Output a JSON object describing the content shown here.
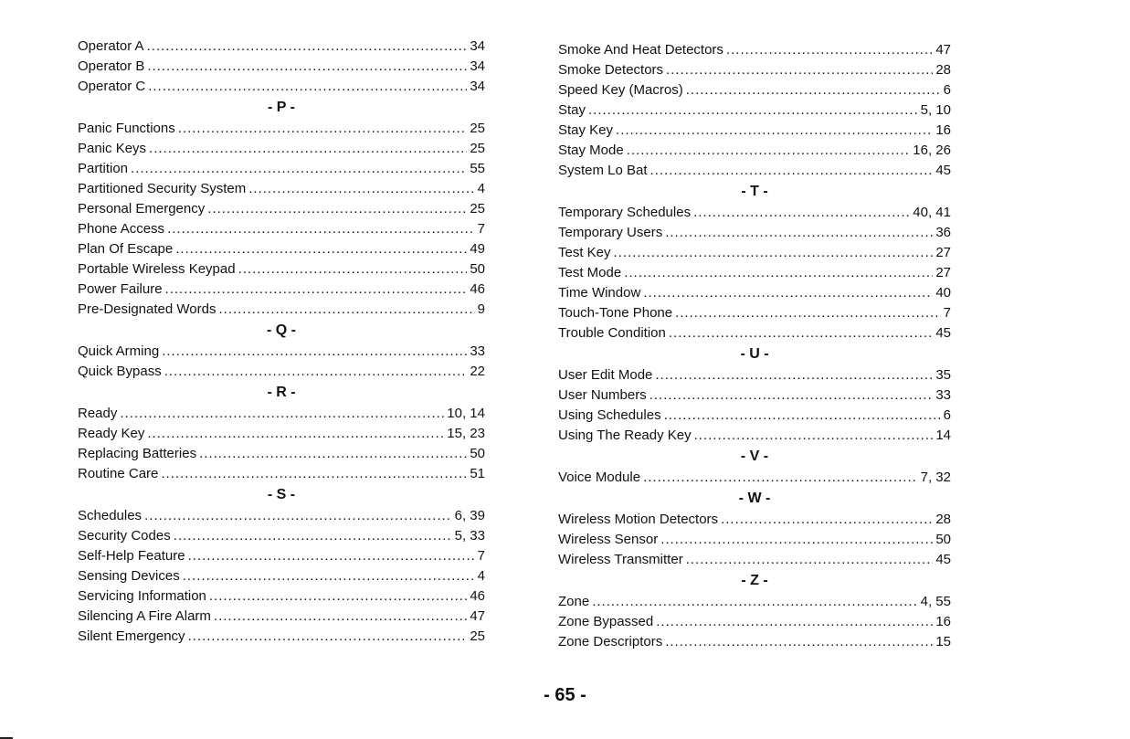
{
  "left_column": [
    {
      "term": "Operator A",
      "pages": "34"
    },
    {
      "term": "Operator B",
      "pages": "34"
    },
    {
      "term": "Operator C",
      "pages": "34"
    },
    {
      "heading": "- P -"
    },
    {
      "term": "Panic Functions",
      "pages": "25"
    },
    {
      "term": "Panic Keys",
      "pages": "25"
    },
    {
      "term": "Partition",
      "pages": "55"
    },
    {
      "term": "Partitioned Security System",
      "pages": "4"
    },
    {
      "term": "Personal Emergency",
      "pages": "25"
    },
    {
      "term": "Phone Access",
      "pages": "7"
    },
    {
      "term": "Plan Of Escape",
      "pages": "49"
    },
    {
      "term": "Portable Wireless Keypad",
      "pages": "50"
    },
    {
      "term": "Power Failure",
      "pages": "46"
    },
    {
      "term": "Pre-Designated Words",
      "pages": "9"
    },
    {
      "heading": "- Q -"
    },
    {
      "term": "Quick Arming",
      "pages": "33"
    },
    {
      "term": "Quick Bypass",
      "pages": "22"
    },
    {
      "heading": "- R -"
    },
    {
      "term": "Ready",
      "pages": "10, 14"
    },
    {
      "term": "Ready Key",
      "pages": "15, 23"
    },
    {
      "term": "Replacing Batteries",
      "pages": "50"
    },
    {
      "term": "Routine Care",
      "pages": "51"
    },
    {
      "heading": "- S -"
    },
    {
      "term": "Schedules",
      "pages": "6, 39"
    },
    {
      "term": "Security Codes",
      "pages": "5, 33"
    },
    {
      "term": "Self-Help Feature",
      "pages": "7"
    },
    {
      "term": "Sensing Devices",
      "pages": "4"
    },
    {
      "term": "Servicing Information",
      "pages": "46"
    },
    {
      "term": "Silencing A Fire Alarm",
      "pages": "47"
    },
    {
      "term": "Silent Emergency",
      "pages": "25"
    }
  ],
  "right_column": [
    {
      "term": "Smoke And Heat Detectors",
      "pages": "47"
    },
    {
      "term": "Smoke Detectors",
      "pages": "28"
    },
    {
      "term": "Speed Key (Macros)",
      "pages": "6"
    },
    {
      "term": "Stay",
      "pages": "5, 10"
    },
    {
      "term": "Stay Key",
      "pages": "16"
    },
    {
      "term": "Stay Mode",
      "pages": "16, 26"
    },
    {
      "term": "System Lo Bat",
      "pages": "45"
    },
    {
      "heading": "- T -"
    },
    {
      "term": "Temporary Schedules",
      "pages": "40, 41"
    },
    {
      "term": "Temporary Users",
      "pages": "36"
    },
    {
      "term": "Test Key",
      "pages": "27"
    },
    {
      "term": "Test Mode",
      "pages": "27"
    },
    {
      "term": "Time Window",
      "pages": "40"
    },
    {
      "term": "Touch-Tone Phone",
      "pages": "7"
    },
    {
      "term": "Trouble Condition",
      "pages": "45"
    },
    {
      "heading": "- U -"
    },
    {
      "term": "User Edit Mode",
      "pages": "35"
    },
    {
      "term": "User Numbers",
      "pages": "33"
    },
    {
      "term": "Using Schedules",
      "pages": "6"
    },
    {
      "term": "Using The Ready Key",
      "pages": "14"
    },
    {
      "heading": "- V -"
    },
    {
      "term": "Voice Module",
      "pages": "7, 32"
    },
    {
      "heading": "- W -"
    },
    {
      "term": "Wireless Motion Detectors",
      "pages": "28"
    },
    {
      "term": "Wireless Sensor",
      "pages": "50"
    },
    {
      "term": "Wireless Transmitter",
      "pages": "45"
    },
    {
      "heading": "- Z -"
    },
    {
      "term": "Zone",
      "pages": "4, 55"
    },
    {
      "term": "Zone Bypassed",
      "pages": "16"
    },
    {
      "term": "Zone Descriptors",
      "pages": "15"
    }
  ],
  "page_number": "- 65 -"
}
